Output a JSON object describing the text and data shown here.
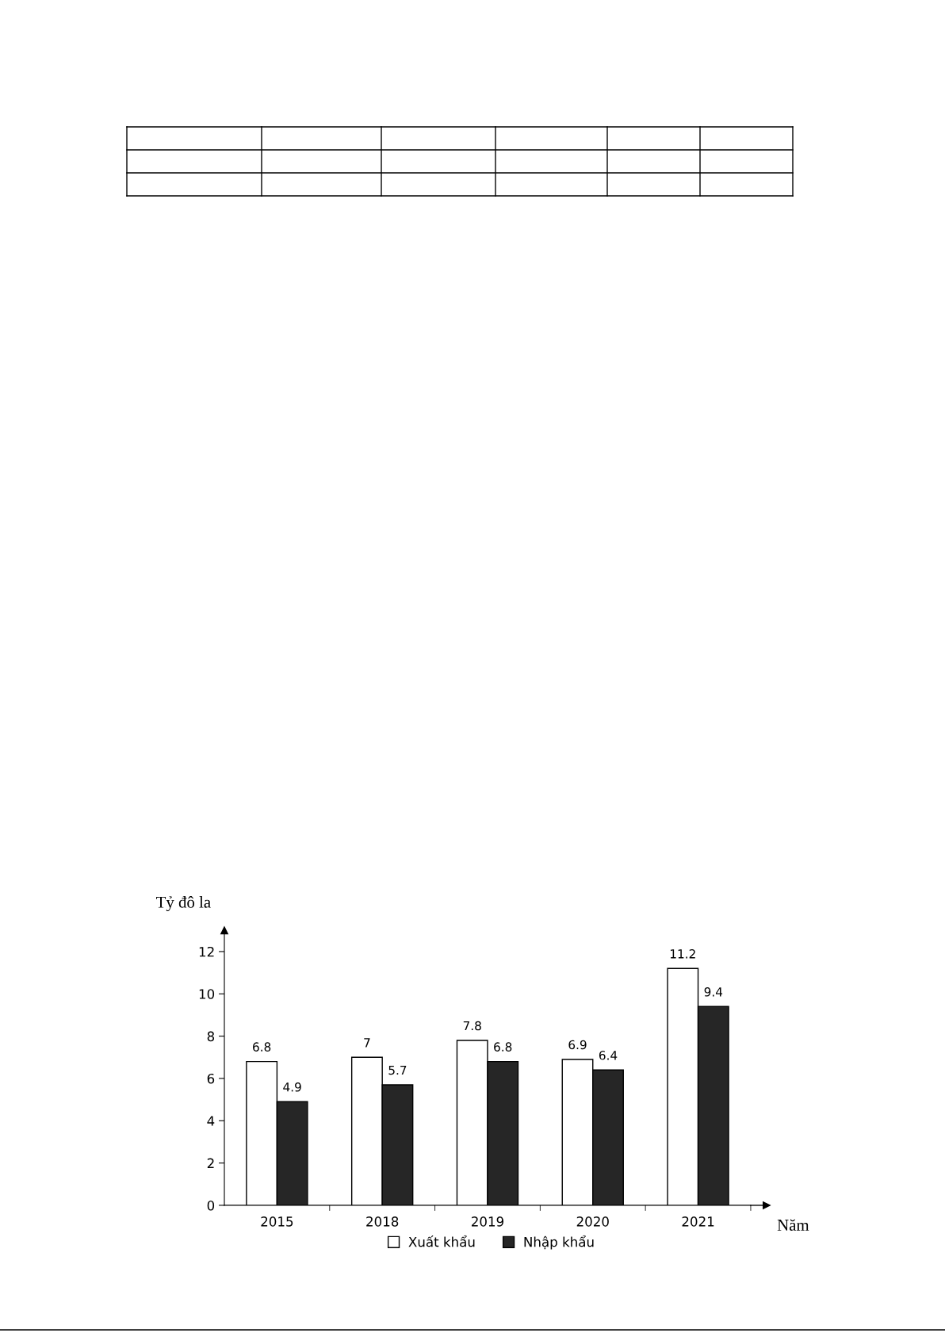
{
  "chart_data": {
    "type": "bar",
    "ylabel": "Tỷ đô la",
    "xlabel": "Năm",
    "categories": [
      "2015",
      "2018",
      "2019",
      "2020",
      "2021"
    ],
    "series": [
      {
        "name": "Xuất khẩu",
        "color": "#ffffff",
        "values": [
          6.8,
          7,
          7.8,
          6.9,
          11.2
        ]
      },
      {
        "name": "Nhập khẩu",
        "color": "#262626",
        "values": [
          4.9,
          5.7,
          6.8,
          6.4,
          9.4
        ]
      }
    ],
    "ylim": [
      0,
      13
    ],
    "yticks": [
      0,
      2,
      4,
      6,
      8,
      10,
      12
    ],
    "data_labels": true,
    "legend": "bottom",
    "grid": false
  }
}
